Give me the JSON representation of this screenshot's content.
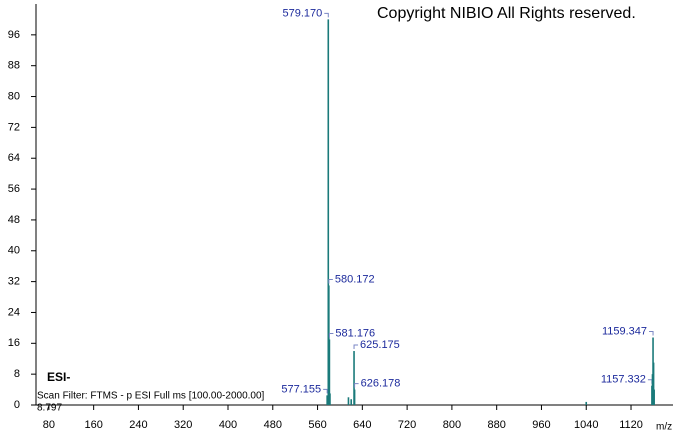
{
  "chart_data": {
    "type": "stick",
    "title": "Copyright NIBIO All Rights reserved.",
    "annotations": [
      "ESI-",
      "Scan Filter: FTMS - p ESI Full ms [100.00-2000.00]",
      "8.797"
    ],
    "x_label": "m/z",
    "x": [
      579.17,
      580.172,
      581.176,
      625.175,
      626.178,
      577.155,
      1159.347,
      1157.332,
      578.16,
      582.18,
      615.2,
      620.1,
      1040,
      1158.34,
      1160.35,
      1161.35
    ],
    "x_labels": [
      "579.170",
      "580.172",
      "581.176",
      "625.175",
      "626.178",
      "577.155",
      "1159.347",
      "1157.332",
      null,
      null,
      null,
      null,
      null,
      null,
      null,
      null
    ],
    "values": [
      100,
      31,
      17,
      14,
      4,
      2.5,
      17.5,
      5,
      1,
      3,
      2,
      1.5,
      0.8,
      8,
      11,
      4
    ],
    "color": "#1a7a7a",
    "xlim": [
      57,
      1195
    ],
    "ylim": [
      0,
      104
    ],
    "xticks": [
      80,
      160,
      240,
      320,
      400,
      480,
      560,
      640,
      720,
      800,
      880,
      960,
      1040,
      1120
    ],
    "yticks": [
      0,
      8,
      16,
      24,
      32,
      40,
      48,
      56,
      64,
      72,
      80,
      88,
      96
    ]
  }
}
